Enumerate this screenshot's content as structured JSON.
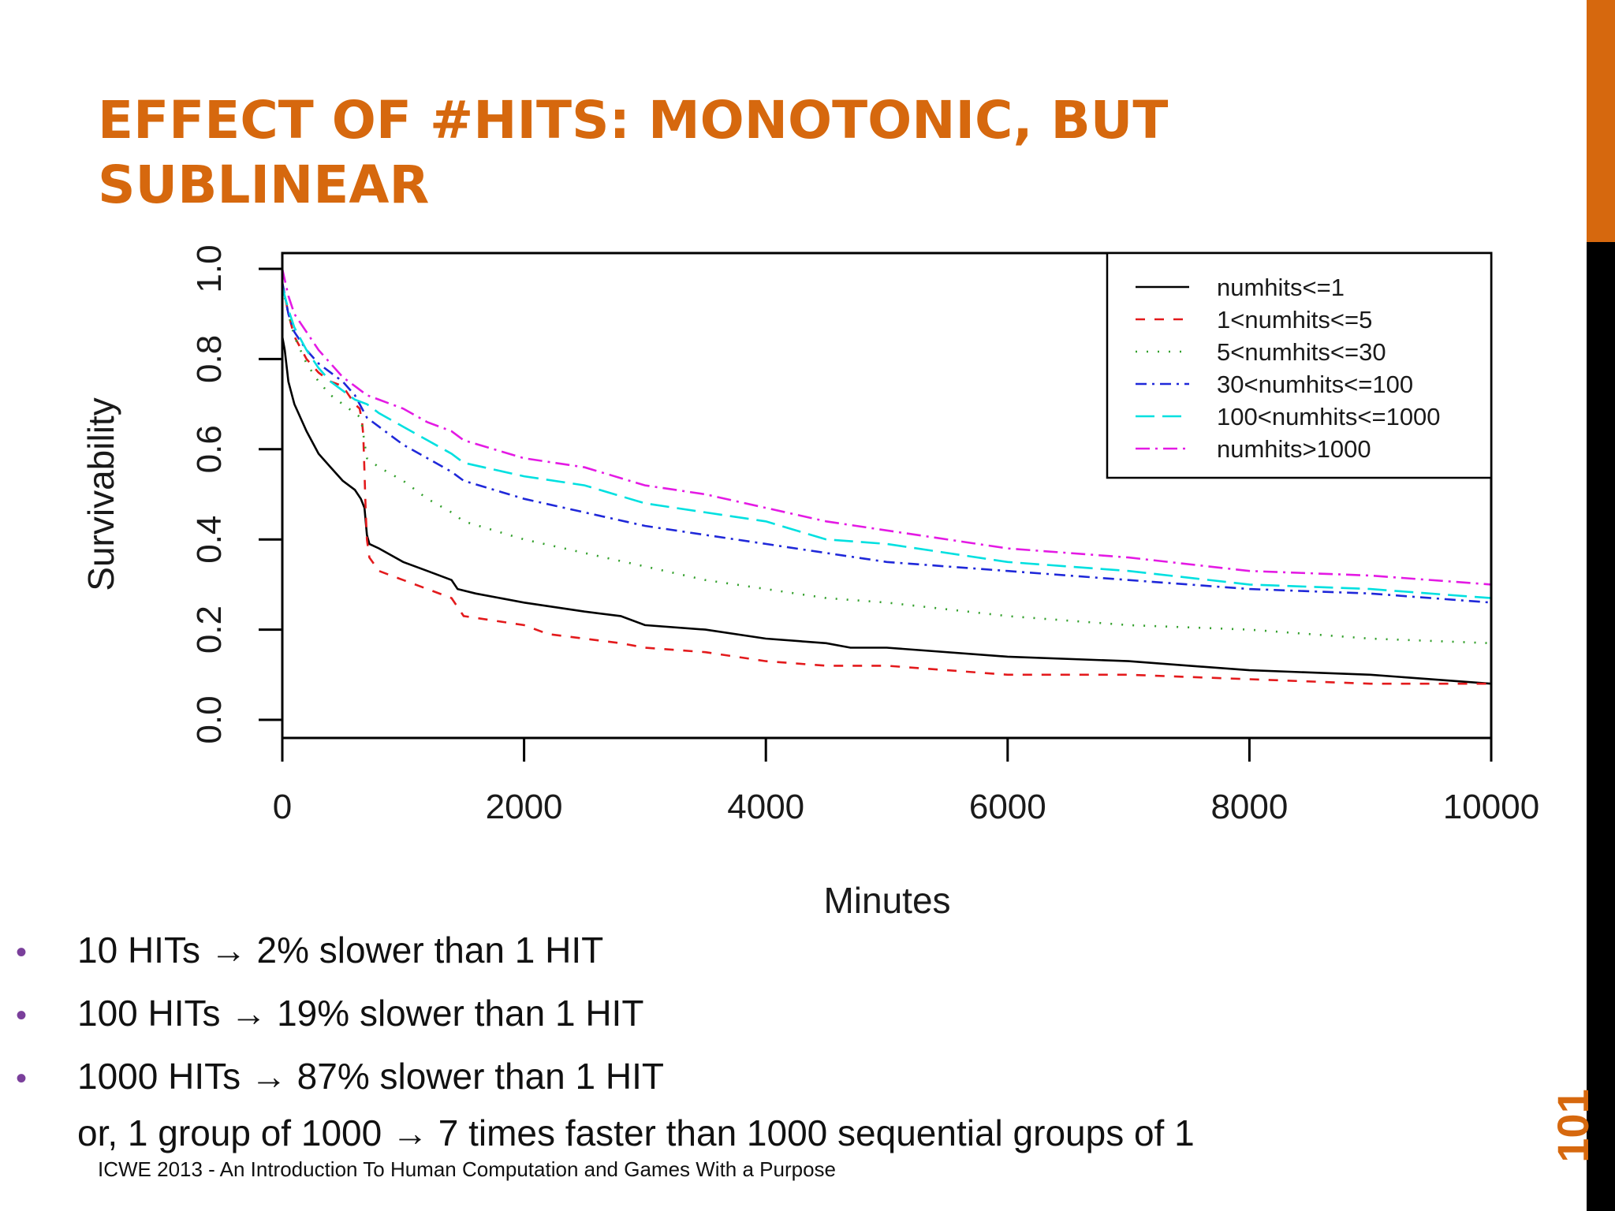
{
  "slide": {
    "title_line1": "EFFECT OF #HITS: MONOTONIC, BUT",
    "title_line2": "SUBLINEAR",
    "page_number": "101",
    "footer": "ICWE 2013 - An Introduction To Human Computation and Games With a Purpose",
    "colors": {
      "accent": "#d6680e",
      "bullet": "#7a3f9b"
    }
  },
  "bullets": [
    {
      "text": "10 HITs → 2% slower than 1 HIT"
    },
    {
      "text": "100 HITs → 19% slower than 1 HIT"
    },
    {
      "text": "1000 HITs → 87% slower than 1 HIT"
    }
  ],
  "bullet_continuation": "or, 1 group of 1000 → 7 times faster than 1000 sequential groups of 1",
  "chart_data": {
    "type": "line",
    "title": "",
    "xlabel": "Minutes",
    "ylabel": "Survivability",
    "xlim": [
      0,
      10000
    ],
    "ylim": [
      0,
      1
    ],
    "x_ticks": [
      "0",
      "2000",
      "4000",
      "6000",
      "8000",
      "10000"
    ],
    "y_ticks": [
      "0.0",
      "0.2",
      "0.4",
      "0.6",
      "0.8",
      "1.0"
    ],
    "grid": false,
    "legend_position": "top-right",
    "series": [
      {
        "name": "numhits<=1",
        "color": "#000000",
        "dash": "solid",
        "points": [
          [
            0,
            0.85
          ],
          [
            20,
            0.82
          ],
          [
            50,
            0.75
          ],
          [
            100,
            0.7
          ],
          [
            200,
            0.64
          ],
          [
            300,
            0.59
          ],
          [
            400,
            0.56
          ],
          [
            500,
            0.53
          ],
          [
            600,
            0.51
          ],
          [
            650,
            0.49
          ],
          [
            680,
            0.47
          ],
          [
            700,
            0.41
          ],
          [
            720,
            0.39
          ],
          [
            800,
            0.38
          ],
          [
            1000,
            0.35
          ],
          [
            1200,
            0.33
          ],
          [
            1400,
            0.31
          ],
          [
            1450,
            0.29
          ],
          [
            1600,
            0.28
          ],
          [
            2000,
            0.26
          ],
          [
            2500,
            0.24
          ],
          [
            2800,
            0.23
          ],
          [
            3000,
            0.21
          ],
          [
            3500,
            0.2
          ],
          [
            4000,
            0.18
          ],
          [
            4500,
            0.17
          ],
          [
            4700,
            0.16
          ],
          [
            5000,
            0.16
          ],
          [
            6000,
            0.14
          ],
          [
            7000,
            0.13
          ],
          [
            8000,
            0.11
          ],
          [
            9000,
            0.1
          ],
          [
            10000,
            0.08
          ]
        ]
      },
      {
        "name": "1<numhits<=5",
        "color": "#e31a1c",
        "dash": "12,12",
        "points": [
          [
            0,
            0.97
          ],
          [
            50,
            0.9
          ],
          [
            100,
            0.85
          ],
          [
            200,
            0.8
          ],
          [
            300,
            0.77
          ],
          [
            400,
            0.75
          ],
          [
            500,
            0.74
          ],
          [
            550,
            0.72
          ],
          [
            600,
            0.7
          ],
          [
            640,
            0.69
          ],
          [
            660,
            0.66
          ],
          [
            670,
            0.63
          ],
          [
            680,
            0.55
          ],
          [
            690,
            0.46
          ],
          [
            700,
            0.4
          ],
          [
            720,
            0.36
          ],
          [
            800,
            0.33
          ],
          [
            1000,
            0.31
          ],
          [
            1200,
            0.29
          ],
          [
            1400,
            0.27
          ],
          [
            1450,
            0.25
          ],
          [
            1500,
            0.23
          ],
          [
            2000,
            0.21
          ],
          [
            2200,
            0.19
          ],
          [
            2800,
            0.17
          ],
          [
            3000,
            0.16
          ],
          [
            3500,
            0.15
          ],
          [
            4000,
            0.13
          ],
          [
            4500,
            0.12
          ],
          [
            5000,
            0.12
          ],
          [
            6000,
            0.1
          ],
          [
            7000,
            0.1
          ],
          [
            8000,
            0.09
          ],
          [
            9000,
            0.08
          ],
          [
            10000,
            0.08
          ]
        ]
      },
      {
        "name": "5<numhits<=30",
        "color": "#33a02c",
        "dash": "2,12",
        "points": [
          [
            0,
            0.96
          ],
          [
            50,
            0.9
          ],
          [
            100,
            0.85
          ],
          [
            200,
            0.79
          ],
          [
            300,
            0.75
          ],
          [
            400,
            0.72
          ],
          [
            500,
            0.7
          ],
          [
            600,
            0.68
          ],
          [
            650,
            0.67
          ],
          [
            700,
            0.58
          ],
          [
            800,
            0.56
          ],
          [
            1000,
            0.53
          ],
          [
            1200,
            0.49
          ],
          [
            1400,
            0.46
          ],
          [
            1500,
            0.44
          ],
          [
            2000,
            0.4
          ],
          [
            2500,
            0.37
          ],
          [
            3000,
            0.34
          ],
          [
            3500,
            0.31
          ],
          [
            4000,
            0.29
          ],
          [
            4500,
            0.27
          ],
          [
            5000,
            0.26
          ],
          [
            6000,
            0.23
          ],
          [
            7000,
            0.21
          ],
          [
            8000,
            0.2
          ],
          [
            9000,
            0.18
          ],
          [
            10000,
            0.17
          ]
        ]
      },
      {
        "name": "30<numhits<=100",
        "color": "#1f28d9",
        "dash": "14,7,3,7",
        "points": [
          [
            0,
            0.97
          ],
          [
            50,
            0.9
          ],
          [
            100,
            0.86
          ],
          [
            200,
            0.82
          ],
          [
            300,
            0.79
          ],
          [
            400,
            0.77
          ],
          [
            500,
            0.75
          ],
          [
            600,
            0.72
          ],
          [
            700,
            0.67
          ],
          [
            800,
            0.65
          ],
          [
            1000,
            0.61
          ],
          [
            1200,
            0.58
          ],
          [
            1400,
            0.55
          ],
          [
            1500,
            0.53
          ],
          [
            2000,
            0.49
          ],
          [
            2500,
            0.46
          ],
          [
            3000,
            0.43
          ],
          [
            3500,
            0.41
          ],
          [
            4000,
            0.39
          ],
          [
            4500,
            0.37
          ],
          [
            5000,
            0.35
          ],
          [
            6000,
            0.33
          ],
          [
            7000,
            0.31
          ],
          [
            8000,
            0.29
          ],
          [
            9000,
            0.28
          ],
          [
            10000,
            0.26
          ]
        ]
      },
      {
        "name": "100<numhits<=1000",
        "color": "#00e0e0",
        "dash": "24,10",
        "points": [
          [
            0,
            0.96
          ],
          [
            50,
            0.91
          ],
          [
            100,
            0.87
          ],
          [
            200,
            0.82
          ],
          [
            300,
            0.78
          ],
          [
            400,
            0.75
          ],
          [
            500,
            0.73
          ],
          [
            600,
            0.71
          ],
          [
            700,
            0.7
          ],
          [
            800,
            0.68
          ],
          [
            1000,
            0.65
          ],
          [
            1200,
            0.62
          ],
          [
            1400,
            0.59
          ],
          [
            1500,
            0.57
          ],
          [
            2000,
            0.54
          ],
          [
            2500,
            0.52
          ],
          [
            3000,
            0.48
          ],
          [
            3500,
            0.46
          ],
          [
            4000,
            0.44
          ],
          [
            4500,
            0.4
          ],
          [
            5000,
            0.39
          ],
          [
            6000,
            0.35
          ],
          [
            7000,
            0.33
          ],
          [
            8000,
            0.3
          ],
          [
            9000,
            0.29
          ],
          [
            10000,
            0.27
          ]
        ]
      },
      {
        "name": "numhits>1000",
        "color": "#e41ae4",
        "dash": "18,7,3,7",
        "points": [
          [
            0,
            1.0
          ],
          [
            50,
            0.94
          ],
          [
            100,
            0.9
          ],
          [
            200,
            0.86
          ],
          [
            300,
            0.82
          ],
          [
            400,
            0.79
          ],
          [
            500,
            0.76
          ],
          [
            600,
            0.74
          ],
          [
            700,
            0.72
          ],
          [
            800,
            0.71
          ],
          [
            1000,
            0.69
          ],
          [
            1200,
            0.66
          ],
          [
            1400,
            0.64
          ],
          [
            1500,
            0.62
          ],
          [
            2000,
            0.58
          ],
          [
            2500,
            0.56
          ],
          [
            3000,
            0.52
          ],
          [
            3500,
            0.5
          ],
          [
            4000,
            0.47
          ],
          [
            4500,
            0.44
          ],
          [
            5000,
            0.42
          ],
          [
            6000,
            0.38
          ],
          [
            7000,
            0.36
          ],
          [
            8000,
            0.33
          ],
          [
            9000,
            0.32
          ],
          [
            10000,
            0.3
          ]
        ]
      }
    ]
  }
}
